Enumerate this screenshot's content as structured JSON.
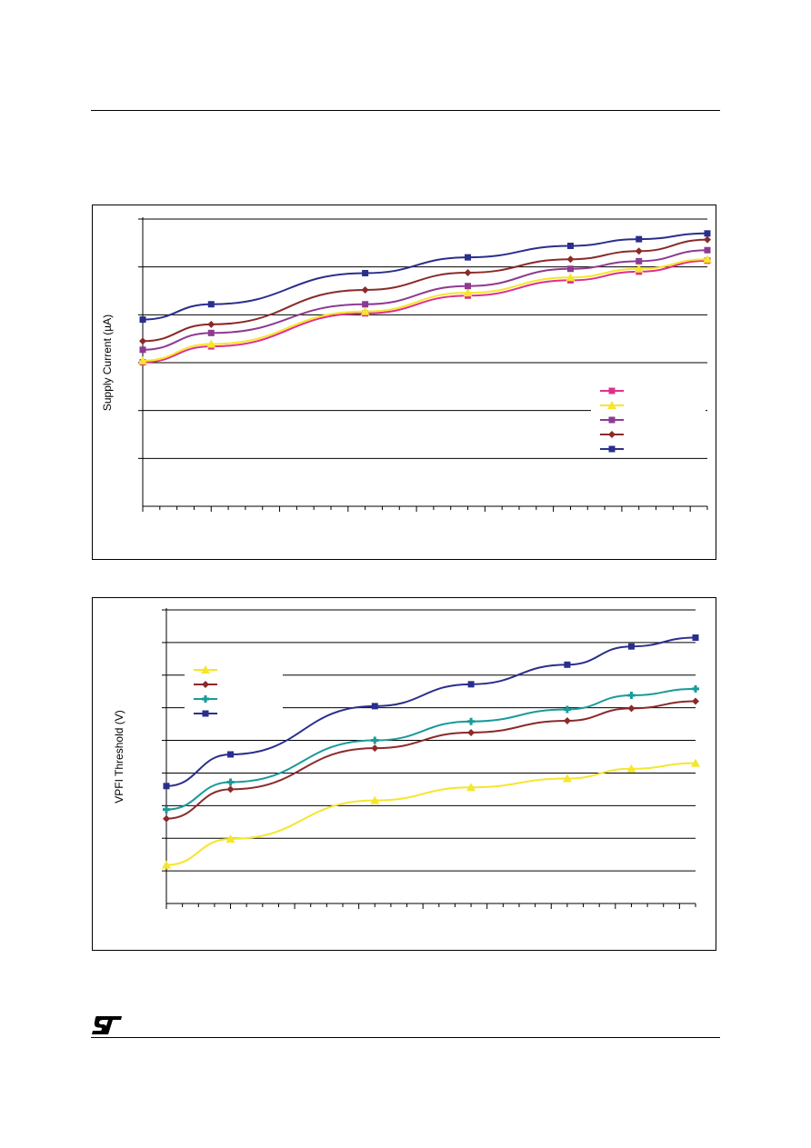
{
  "page": {
    "logo_text": "ST"
  },
  "chart_data": [
    {
      "type": "line",
      "title": "",
      "xlabel": "",
      "ylabel": "Supply Current (µA)",
      "x_count": 17,
      "ylim": [
        0,
        6
      ],
      "y_gridlines": 6,
      "grid": true,
      "legend_placement": "right",
      "series": [
        {
          "color": "#e0308a",
          "marker": "square",
          "points": [
            [
              0,
              3.01
            ],
            [
              4,
              3.34
            ],
            [
              13,
              4.03
            ],
            [
              19,
              4.4
            ],
            [
              25,
              4.72
            ],
            [
              29,
              4.9
            ],
            [
              33,
              5.13
            ]
          ]
        },
        {
          "color": "#f5e62a",
          "marker": "triangle",
          "points": [
            [
              0,
              3.04
            ],
            [
              4,
              3.39
            ],
            [
              13,
              4.07
            ],
            [
              19,
              4.46
            ],
            [
              25,
              4.78
            ],
            [
              29,
              4.96
            ],
            [
              33,
              5.16
            ]
          ]
        },
        {
          "color": "#8e3a92",
          "marker": "square",
          "points": [
            [
              0,
              3.27
            ],
            [
              4,
              3.62
            ],
            [
              13,
              4.22
            ],
            [
              19,
              4.6
            ],
            [
              25,
              4.96
            ],
            [
              29,
              5.12
            ],
            [
              33,
              5.35
            ]
          ]
        },
        {
          "color": "#8b2a2a",
          "marker": "diamond",
          "points": [
            [
              0,
              3.45
            ],
            [
              4,
              3.8
            ],
            [
              13,
              4.52
            ],
            [
              19,
              4.88
            ],
            [
              25,
              5.16
            ],
            [
              29,
              5.33
            ],
            [
              33,
              5.57
            ]
          ]
        },
        {
          "color": "#2a2f8c",
          "marker": "square",
          "points": [
            [
              0,
              3.9
            ],
            [
              4,
              4.22
            ],
            [
              13,
              4.87
            ],
            [
              19,
              5.2
            ],
            [
              25,
              5.44
            ],
            [
              29,
              5.58
            ],
            [
              33,
              5.7
            ]
          ]
        }
      ]
    },
    {
      "type": "line",
      "title": "",
      "xlabel": "",
      "ylabel": "VPFI Threshold (V)",
      "x_count": 17,
      "ylim": [
        0,
        9
      ],
      "y_gridlines": 9,
      "grid": true,
      "legend_placement": "top-left",
      "series": [
        {
          "color": "#f5e62a",
          "marker": "triangle",
          "points": [
            [
              0,
              1.18
            ],
            [
              4,
              1.98
            ],
            [
              13,
              3.16
            ],
            [
              19,
              3.56
            ],
            [
              25,
              3.83
            ],
            [
              29,
              4.13
            ],
            [
              33,
              4.3
            ]
          ]
        },
        {
          "color": "#8b2a2a",
          "marker": "diamond",
          "points": [
            [
              0,
              2.6
            ],
            [
              4,
              3.5
            ],
            [
              13,
              4.76
            ],
            [
              19,
              5.24
            ],
            [
              25,
              5.6
            ],
            [
              29,
              5.98
            ],
            [
              33,
              6.2
            ]
          ]
        },
        {
          "color": "#1a9a9a",
          "marker": "cross",
          "points": [
            [
              0,
              2.88
            ],
            [
              4,
              3.72
            ],
            [
              13,
              5.0
            ],
            [
              19,
              5.58
            ],
            [
              25,
              5.95
            ],
            [
              29,
              6.38
            ],
            [
              33,
              6.58
            ]
          ]
        },
        {
          "color": "#2a2f8c",
          "marker": "square",
          "points": [
            [
              0,
              3.6
            ],
            [
              4,
              4.57
            ],
            [
              13,
              6.05
            ],
            [
              19,
              6.72
            ],
            [
              25,
              7.32
            ],
            [
              29,
              7.88
            ],
            [
              33,
              8.15
            ]
          ]
        }
      ]
    }
  ]
}
